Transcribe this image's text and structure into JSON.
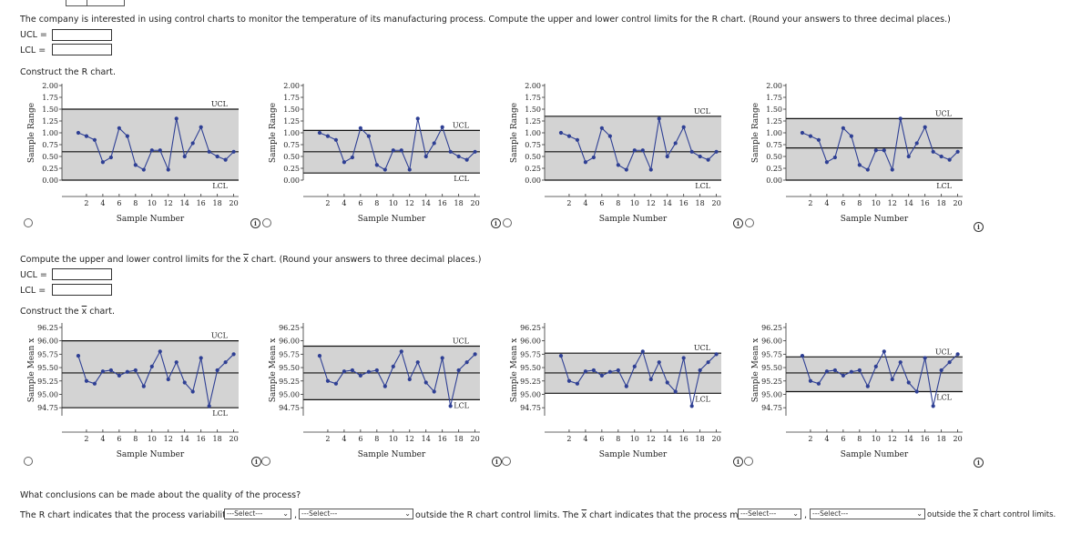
{
  "r_question": "The company is interested in using control charts to monitor the temperature of its manufacturing process. Compute the upper and lower control limits for the R chart. (Round your answers to three decimal places.)",
  "ucl_label": "UCL =",
  "lcl_label": "LCL =",
  "r_construct": "Construct the R chart.",
  "xbar_question_pre": "Compute the upper and lower control limits for the ",
  "xbar_symbol": "x",
  "xbar_question_post": " chart. (Round your answers to three decimal places.)",
  "xbar_construct_pre": "Construct the ",
  "xbar_construct_post": " chart.",
  "conclusions_question": "What conclusions can be made about the quality of the process?",
  "conclusion": {
    "part1": "The R chart indicates that the process variability is",
    "part2": "outside the R chart control limits. The ",
    "part3": " chart indicates that the process mean is",
    "part4": "outside the ",
    "part5": " chart control limits.",
    "select_placeholder": "---Select---"
  },
  "info_glyph": "i",
  "chart_data": [
    {
      "type": "line",
      "group": "R",
      "option": 1,
      "xlabel": "Sample Number",
      "ylabel": "Sample Range",
      "x_ticks": [
        2,
        4,
        6,
        8,
        10,
        12,
        14,
        16,
        18,
        20
      ],
      "y_ticks": [
        0.0,
        0.25,
        0.5,
        0.75,
        1.0,
        1.25,
        1.5,
        1.75,
        2.0
      ],
      "y_tick_labels": [
        "0.00",
        "0.25",
        "0.50",
        "0.75",
        "1.00",
        "1.25",
        "1.50",
        "1.75",
        "2.00"
      ],
      "ylim": [
        0,
        2.0
      ],
      "ucl": 1.5,
      "center": 0.6,
      "lcl": 0.0,
      "ucl_label": "UCL",
      "lcl_label": "LCL",
      "x": [
        1,
        2,
        3,
        4,
        5,
        6,
        7,
        8,
        9,
        10,
        11,
        12,
        13,
        14,
        15,
        16,
        17,
        18,
        19,
        20
      ],
      "values": [
        1.0,
        0.93,
        0.85,
        0.38,
        0.48,
        1.1,
        0.93,
        0.32,
        0.22,
        0.63,
        0.63,
        0.22,
        1.3,
        0.5,
        0.78,
        1.12,
        0.6,
        0.5,
        0.43,
        0.6
      ]
    },
    {
      "type": "line",
      "group": "R",
      "option": 2,
      "xlabel": "Sample Number",
      "ylabel": "Sample Range",
      "x_ticks": [
        2,
        4,
        6,
        8,
        10,
        12,
        14,
        16,
        18,
        20
      ],
      "y_ticks": [
        0.0,
        0.25,
        0.5,
        0.75,
        1.0,
        1.25,
        1.5,
        1.75,
        2.0
      ],
      "y_tick_labels": [
        "0.00",
        "0.25",
        "0.50",
        "0.75",
        "1.00",
        "1.25",
        "1.50",
        "1.75",
        "2.00"
      ],
      "ylim": [
        0,
        2.0
      ],
      "ucl": 1.05,
      "center": 0.6,
      "lcl": 0.15,
      "ucl_label": "UCL",
      "lcl_label": "LCL",
      "x": [
        1,
        2,
        3,
        4,
        5,
        6,
        7,
        8,
        9,
        10,
        11,
        12,
        13,
        14,
        15,
        16,
        17,
        18,
        19,
        20
      ],
      "values": [
        1.0,
        0.93,
        0.85,
        0.38,
        0.48,
        1.1,
        0.93,
        0.32,
        0.22,
        0.63,
        0.63,
        0.22,
        1.3,
        0.5,
        0.78,
        1.12,
        0.6,
        0.5,
        0.43,
        0.6
      ]
    },
    {
      "type": "line",
      "group": "R",
      "option": 3,
      "xlabel": "Sample Number",
      "ylabel": "Sample Range",
      "x_ticks": [
        2,
        4,
        6,
        8,
        10,
        12,
        14,
        16,
        18,
        20
      ],
      "y_ticks": [
        0.0,
        0.25,
        0.5,
        0.75,
        1.0,
        1.25,
        1.5,
        1.75,
        2.0
      ],
      "y_tick_labels": [
        "0.00",
        "0.25",
        "0.50",
        "0.75",
        "1.00",
        "1.25",
        "1.50",
        "1.75",
        "2.00"
      ],
      "ylim": [
        0,
        2.0
      ],
      "ucl": 1.35,
      "center": 0.6,
      "lcl": 0.0,
      "ucl_label": "UCL",
      "lcl_label": "LCL",
      "x": [
        1,
        2,
        3,
        4,
        5,
        6,
        7,
        8,
        9,
        10,
        11,
        12,
        13,
        14,
        15,
        16,
        17,
        18,
        19,
        20
      ],
      "values": [
        1.0,
        0.93,
        0.85,
        0.38,
        0.48,
        1.1,
        0.93,
        0.32,
        0.22,
        0.63,
        0.63,
        0.22,
        1.3,
        0.5,
        0.78,
        1.12,
        0.6,
        0.5,
        0.43,
        0.6
      ]
    },
    {
      "type": "line",
      "group": "R",
      "option": 4,
      "xlabel": "Sample Number",
      "ylabel": "Sample Range",
      "x_ticks": [
        2,
        4,
        6,
        8,
        10,
        12,
        14,
        16,
        18,
        20
      ],
      "y_ticks": [
        0.0,
        0.25,
        0.5,
        0.75,
        1.0,
        1.25,
        1.5,
        1.75,
        2.0
      ],
      "y_tick_labels": [
        "0.00",
        "0.25",
        "0.50",
        "0.75",
        "1.00",
        "1.25",
        "1.50",
        "1.75",
        "2.00"
      ],
      "ylim": [
        0,
        2.0
      ],
      "ucl": 1.3,
      "center": 0.68,
      "lcl": 0.0,
      "ucl_label": "UCL",
      "lcl_label": "LCL",
      "x": [
        1,
        2,
        3,
        4,
        5,
        6,
        7,
        8,
        9,
        10,
        11,
        12,
        13,
        14,
        15,
        16,
        17,
        18,
        19,
        20
      ],
      "values": [
        1.0,
        0.93,
        0.85,
        0.38,
        0.48,
        1.1,
        0.93,
        0.32,
        0.22,
        0.63,
        0.63,
        0.22,
        1.3,
        0.5,
        0.78,
        1.12,
        0.6,
        0.5,
        0.43,
        0.6
      ]
    },
    {
      "type": "line",
      "group": "X",
      "option": 1,
      "xlabel": "Sample Number",
      "ylabel": "Sample Mean x",
      "x_ticks": [
        2,
        4,
        6,
        8,
        10,
        12,
        14,
        16,
        18,
        20
      ],
      "y_ticks": [
        94.75,
        95.0,
        95.25,
        95.5,
        95.75,
        96.0,
        96.25
      ],
      "y_tick_labels": [
        "94.75",
        "95.00",
        "95.25",
        "95.50",
        "95.75",
        "96.00",
        "96.25"
      ],
      "ylim": [
        94.6,
        96.3
      ],
      "ucl": 96.0,
      "center": 95.4,
      "lcl": 94.75,
      "ucl_label": "UCL",
      "lcl_label": "LCL",
      "x": [
        1,
        2,
        3,
        4,
        5,
        6,
        7,
        8,
        9,
        10,
        11,
        12,
        13,
        14,
        15,
        16,
        17,
        18,
        19,
        20
      ],
      "values": [
        95.72,
        95.25,
        95.2,
        95.43,
        95.45,
        95.35,
        95.42,
        95.45,
        95.15,
        95.52,
        95.8,
        95.28,
        95.6,
        95.22,
        95.05,
        95.68,
        94.78,
        95.45,
        95.6,
        95.75
      ]
    },
    {
      "type": "line",
      "group": "X",
      "option": 2,
      "xlabel": "Sample Number",
      "ylabel": "Sample Mean x",
      "x_ticks": [
        2,
        4,
        6,
        8,
        10,
        12,
        14,
        16,
        18,
        20
      ],
      "y_ticks": [
        94.75,
        95.0,
        95.25,
        95.5,
        95.75,
        96.0,
        96.25
      ],
      "y_tick_labels": [
        "94.75",
        "95.00",
        "95.25",
        "95.50",
        "95.75",
        "96.00",
        "96.25"
      ],
      "ylim": [
        94.6,
        96.3
      ],
      "ucl": 95.9,
      "center": 95.4,
      "lcl": 94.9,
      "ucl_label": "UCL",
      "lcl_label": "LCL",
      "x": [
        1,
        2,
        3,
        4,
        5,
        6,
        7,
        8,
        9,
        10,
        11,
        12,
        13,
        14,
        15,
        16,
        17,
        18,
        19,
        20
      ],
      "values": [
        95.72,
        95.25,
        95.2,
        95.43,
        95.45,
        95.35,
        95.42,
        95.45,
        95.15,
        95.52,
        95.8,
        95.28,
        95.6,
        95.22,
        95.05,
        95.68,
        94.78,
        95.45,
        95.6,
        95.75
      ]
    },
    {
      "type": "line",
      "group": "X",
      "option": 3,
      "xlabel": "Sample Number",
      "ylabel": "Sample Mean x",
      "x_ticks": [
        2,
        4,
        6,
        8,
        10,
        12,
        14,
        16,
        18,
        20
      ],
      "y_ticks": [
        94.75,
        95.0,
        95.25,
        95.5,
        95.75,
        96.0,
        96.25
      ],
      "y_tick_labels": [
        "94.75",
        "95.00",
        "95.25",
        "95.50",
        "95.75",
        "96.00",
        "96.25"
      ],
      "ylim": [
        94.6,
        96.3
      ],
      "ucl": 95.77,
      "center": 95.4,
      "lcl": 95.02,
      "ucl_label": "UCL",
      "lcl_label": "LCL",
      "x": [
        1,
        2,
        3,
        4,
        5,
        6,
        7,
        8,
        9,
        10,
        11,
        12,
        13,
        14,
        15,
        16,
        17,
        18,
        19,
        20
      ],
      "values": [
        95.72,
        95.25,
        95.2,
        95.43,
        95.45,
        95.35,
        95.42,
        95.45,
        95.15,
        95.52,
        95.8,
        95.28,
        95.6,
        95.22,
        95.05,
        95.68,
        94.78,
        95.45,
        95.6,
        95.75
      ]
    },
    {
      "type": "line",
      "group": "X",
      "option": 4,
      "xlabel": "Sample Number",
      "ylabel": "Sample Mean x",
      "x_ticks": [
        2,
        4,
        6,
        8,
        10,
        12,
        14,
        16,
        18,
        20
      ],
      "y_ticks": [
        94.75,
        95.0,
        95.25,
        95.5,
        95.75,
        96.0,
        96.25
      ],
      "y_tick_labels": [
        "94.75",
        "95.00",
        "95.25",
        "95.50",
        "95.75",
        "96.00",
        "96.25"
      ],
      "ylim": [
        94.6,
        96.3
      ],
      "ucl": 95.7,
      "center": 95.4,
      "lcl": 95.05,
      "ucl_label": "UCL",
      "lcl_label": "LCL",
      "x": [
        1,
        2,
        3,
        4,
        5,
        6,
        7,
        8,
        9,
        10,
        11,
        12,
        13,
        14,
        15,
        16,
        17,
        18,
        19,
        20
      ],
      "values": [
        95.72,
        95.25,
        95.2,
        95.43,
        95.45,
        95.35,
        95.42,
        95.45,
        95.15,
        95.52,
        95.8,
        95.28,
        95.6,
        95.22,
        95.05,
        95.68,
        94.78,
        95.45,
        95.6,
        95.75
      ]
    }
  ]
}
